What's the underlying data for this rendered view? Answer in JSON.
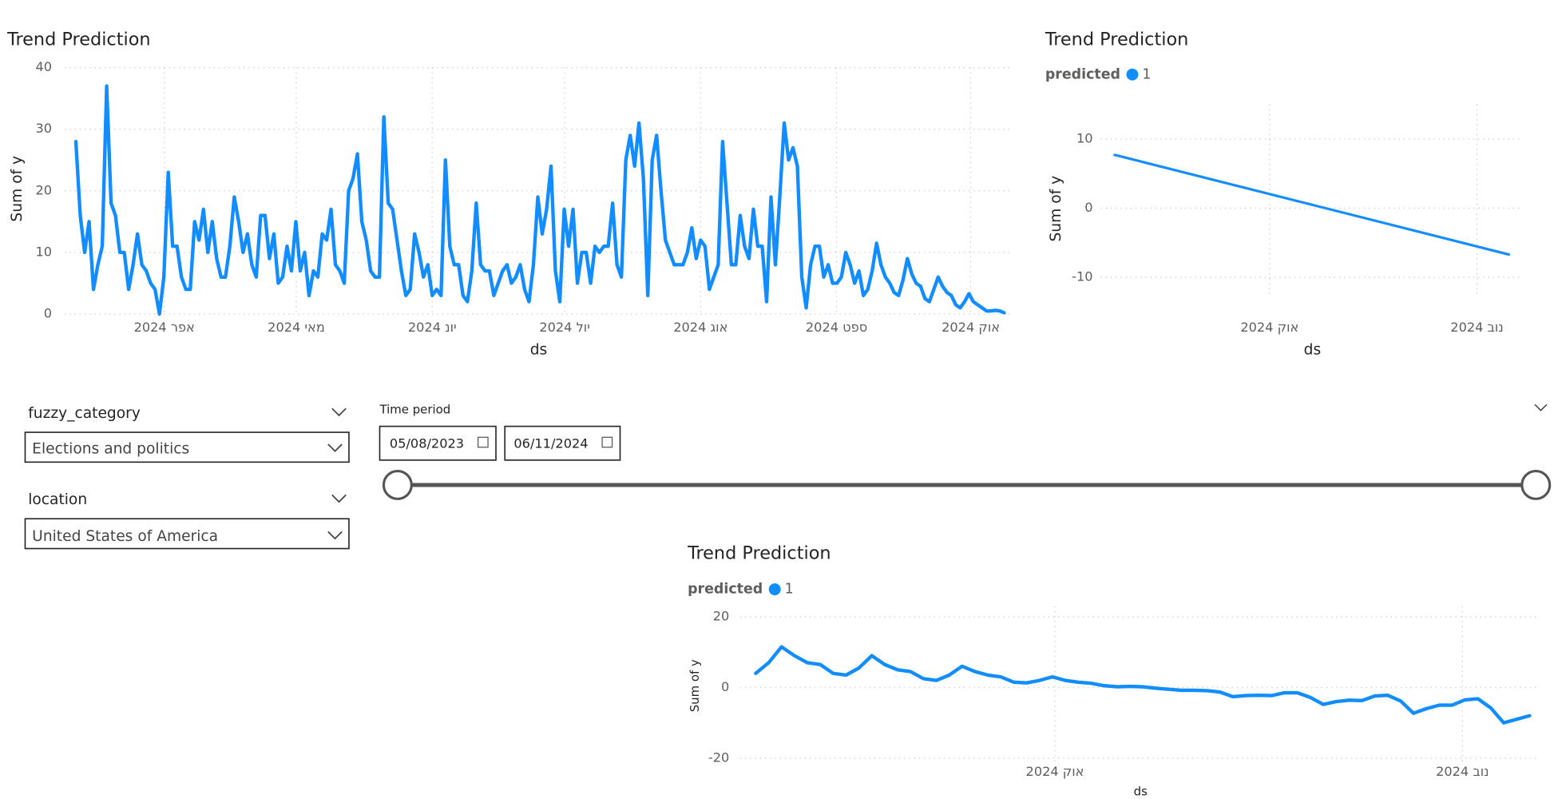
{
  "chart_data": [
    {
      "type": "line",
      "title": "Trend Prediction",
      "x_label": "ds",
      "y_label": "Sum of y",
      "color": "#118DFF",
      "values": [
        28,
        16,
        10,
        15,
        4,
        8,
        11,
        37,
        18,
        16,
        10,
        10,
        4,
        8,
        13,
        8,
        7,
        5,
        4,
        0,
        6,
        23,
        11,
        11,
        6,
        4,
        4,
        15,
        12,
        17,
        10,
        15,
        9,
        6,
        6,
        11,
        19,
        15,
        10,
        13,
        8,
        6,
        16,
        16,
        9,
        13,
        5,
        6,
        11,
        7,
        15,
        7,
        10,
        3,
        7,
        6,
        13,
        12,
        17,
        8,
        7,
        5,
        20,
        22,
        26,
        15,
        12,
        7,
        6,
        6,
        32,
        18,
        17,
        12,
        7,
        3,
        4,
        13,
        10,
        6,
        8,
        3,
        4,
        3,
        25,
        11,
        8,
        8,
        3,
        2,
        7,
        18,
        8,
        7,
        7,
        3,
        5,
        7,
        8,
        5,
        6,
        8,
        4,
        2,
        8,
        19,
        13,
        17,
        24,
        7,
        2,
        17,
        11,
        17,
        5,
        10,
        10,
        5,
        11,
        10,
        11,
        11,
        18,
        8,
        6,
        25,
        29,
        24,
        31,
        22,
        3,
        25,
        29,
        20,
        12,
        10,
        8,
        8,
        8,
        10,
        14,
        9,
        12,
        11,
        4,
        6,
        8,
        28,
        18,
        8,
        8,
        16,
        11,
        9,
        17,
        11,
        11,
        2,
        19,
        8,
        19,
        31,
        25,
        27,
        24,
        6,
        1,
        8,
        11,
        11,
        6,
        8,
        5,
        5,
        6,
        10,
        8,
        5,
        7,
        3,
        4,
        7,
        11.5,
        8,
        6,
        5,
        3.5,
        3,
        5.5,
        9,
        6.5,
        5,
        4.5,
        2.5,
        2,
        4,
        6,
        4.5,
        3.5,
        3,
        1.5,
        1,
        2,
        3.3,
        2,
        1.5,
        1,
        0.5,
        0.5,
        0.6,
        0.5,
        0.2
      ],
      "xlim": [
        -2.5,
        213.1
      ],
      "xticks": [
        {
          "value": 20.1,
          "label": "אפר 2024"
        },
        {
          "value": 50.1,
          "label": "מאי 2024"
        },
        {
          "value": 81.0,
          "label": "יונ 2024"
        },
        {
          "value": 111.1,
          "label": "יול 2024"
        },
        {
          "value": 142.0,
          "label": "אוג 2024"
        },
        {
          "value": 172.9,
          "label": "ספט 2024"
        },
        {
          "value": 203.4,
          "label": "אוק 2024"
        }
      ],
      "ylim": [
        0,
        40
      ],
      "yticks": [
        0,
        10,
        20,
        30,
        40
      ],
      "grid": true
    },
    {
      "type": "line",
      "title": "Trend Prediction",
      "x_label": "ds",
      "y_label": "Sum of y",
      "legend_title": "predicted",
      "series": [
        {
          "name": "1",
          "color": "#118DFF",
          "values": [
            7.7,
            -6.7
          ]
        }
      ],
      "xlim": [
        -0.035,
        1.028
      ],
      "xticks": [
        {
          "value": 0.393,
          "label": "אוק 2024"
        },
        {
          "value": 0.919,
          "label": "נוב 2024"
        }
      ],
      "ylim": [
        -13,
        15
      ],
      "yticks": [
        -10,
        0,
        10
      ],
      "grid": true
    },
    {
      "type": "line",
      "title": "Trend Prediction",
      "x_label": "ds",
      "y_label": "Sum of y",
      "legend_title": "predicted",
      "series": [
        {
          "name": "1",
          "color": "#118DFF",
          "values": [
            4,
            7,
            11.5,
            9,
            7,
            6.5,
            4,
            3.5,
            5.5,
            9,
            6.5,
            5,
            4.5,
            2.5,
            2,
            3.5,
            6,
            4.5,
            3.5,
            3,
            1.5,
            1.3,
            2,
            3,
            2,
            1.5,
            1.2,
            0.5,
            0.2,
            0.3,
            0.2,
            -0.2,
            -0.5,
            -0.8,
            -0.8,
            -0.9,
            -1.3,
            -2.6,
            -2.3,
            -2.2,
            -2.3,
            -1.5,
            -1.5,
            -2.8,
            -4.8,
            -4,
            -3.6,
            -3.7,
            -2.4,
            -2.2,
            -3.8,
            -7.3,
            -6,
            -5,
            -5,
            -3.5,
            -3.2,
            -5.8,
            -10,
            -9,
            -8
          ]
        }
      ],
      "xlim": [
        -1.2,
        60.8
      ],
      "xticks": [
        {
          "value": 23.2,
          "label": "אוק 2024"
        },
        {
          "value": 54.8,
          "label": "נוב 2024"
        }
      ],
      "ylim": [
        -22,
        23
      ],
      "yticks": [
        -20,
        0,
        20
      ],
      "grid": true
    }
  ],
  "filters": {
    "category": {
      "title": "fuzzy_category",
      "value": "Elections and politics"
    },
    "location": {
      "title": "location",
      "value": "United States of America"
    },
    "time_period": {
      "title": "Time period",
      "start": "05/08/2023",
      "end": "06/11/2024"
    }
  }
}
